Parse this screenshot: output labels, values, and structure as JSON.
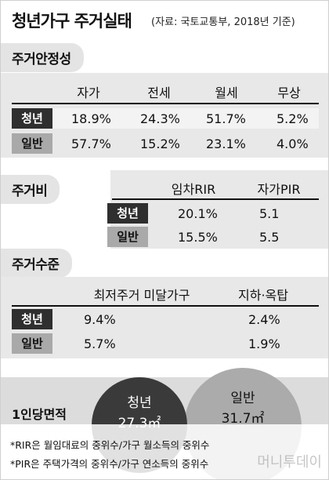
{
  "title": "청년가구 주거실태",
  "source": "(자료: 국토교통부, 2018년 기준)",
  "section1": {
    "label": "주거안정성",
    "headers": [
      "자가",
      "전세",
      "월세",
      "무상"
    ],
    "rows": [
      {
        "label": "청년",
        "values": [
          "18.9%",
          "24.3%",
          "51.7%",
          "5.2%"
        ]
      },
      {
        "label": "일반",
        "values": [
          "57.7%",
          "15.2%",
          "23.1%",
          "4.0%"
        ]
      }
    ]
  },
  "section2": {
    "label": "주거비",
    "headers": [
      "임차RIR",
      "자가PIR"
    ],
    "rows": [
      {
        "label": "청년",
        "values": [
          "20.1%",
          "5.1"
        ]
      },
      {
        "label": "일반",
        "values": [
          "15.5%",
          "5.5"
        ]
      }
    ]
  },
  "section3": {
    "label": "주거수준",
    "headers": [
      "최저주거 미달가구",
      "지하·옥탑"
    ],
    "rows": [
      {
        "label": "청년",
        "values": [
          "9.4%",
          "2.4%"
        ]
      },
      {
        "label": "일반",
        "values": [
          "5.7%",
          "1.9%"
        ]
      }
    ]
  },
  "area": {
    "label": "1인당면적",
    "youth": {
      "name": "청년",
      "value": "27.3㎡"
    },
    "general": {
      "name": "일반",
      "value": "31.7㎡"
    }
  },
  "notes": [
    "*RIR은 월임대료의 중위수/가구 월소득의 중위수",
    "*PIR은 주택가격의 중위수/가구 연소득의 중위수"
  ],
  "watermark": "머니투데이"
}
